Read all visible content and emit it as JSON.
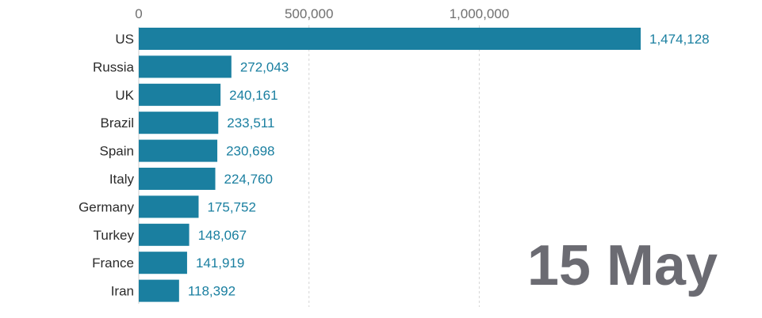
{
  "chart_data": {
    "type": "bar",
    "orientation": "horizontal",
    "categories": [
      "US",
      "Russia",
      "UK",
      "Brazil",
      "Spain",
      "Italy",
      "Germany",
      "Turkey",
      "France",
      "Iran"
    ],
    "values": [
      1474128,
      272043,
      240161,
      233511,
      230698,
      224760,
      175752,
      148067,
      141919,
      118392
    ],
    "value_labels": [
      "1,474,128",
      "272,043",
      "240,161",
      "233,511",
      "230,698",
      "224,760",
      "175,752",
      "148,067",
      "141,919",
      "118,392"
    ],
    "x_ticks": [
      0,
      500000,
      1000000
    ],
    "x_tick_labels": [
      "0",
      "500,000",
      "1,000,000"
    ],
    "xlim": [
      0,
      1474128
    ],
    "x_axis_position": "top",
    "grid": "vertical dashed",
    "bar_color": "#1a7fa0",
    "value_label_color": "#1a7fa0",
    "date_label": "15 May",
    "date_label_color": "#6b6b72"
  }
}
